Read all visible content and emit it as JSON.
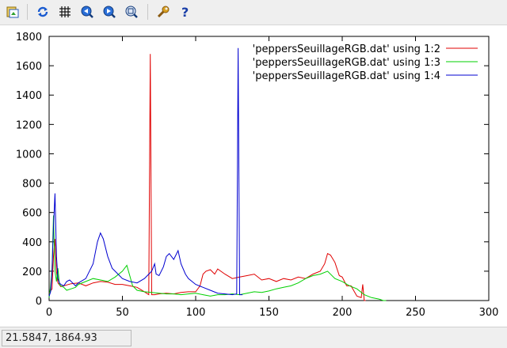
{
  "toolbar": {
    "buttons": [
      {
        "name": "export-icon"
      },
      {
        "name": "replot-icon"
      },
      {
        "name": "grid-icon"
      },
      {
        "name": "zoom-previous-icon"
      },
      {
        "name": "zoom-next-icon"
      },
      {
        "name": "autoscale-icon"
      },
      {
        "name": "options-icon"
      },
      {
        "name": "help-icon"
      }
    ]
  },
  "status": {
    "coordinates": "21.5847,  1864.93"
  },
  "colors": {
    "red": "#e00000",
    "green": "#00d000",
    "blue": "#0000d0"
  },
  "chart_data": {
    "type": "line",
    "xlim": [
      0,
      300
    ],
    "ylim": [
      0,
      1800
    ],
    "xticks": [
      0,
      50,
      100,
      150,
      200,
      250,
      300
    ],
    "yticks": [
      0,
      200,
      400,
      600,
      800,
      1000,
      1200,
      1400,
      1600,
      1800
    ],
    "legend_position": "top-right",
    "series": [
      {
        "name": "'peppersSeuillageRGB.dat' using 1:2",
        "color": "#e00000",
        "x": [
          0,
          2,
          3,
          4,
          5,
          6,
          8,
          10,
          15,
          20,
          25,
          30,
          35,
          40,
          45,
          50,
          55,
          60,
          65,
          68,
          69,
          70,
          71,
          72,
          75,
          80,
          85,
          90,
          95,
          100,
          103,
          105,
          107,
          110,
          113,
          115,
          120,
          125,
          130,
          135,
          140,
          145,
          150,
          155,
          160,
          165,
          170,
          175,
          180,
          185,
          188,
          190,
          192,
          195,
          198,
          200,
          203,
          206,
          210,
          213,
          214,
          215,
          216
        ],
        "y": [
          50,
          80,
          300,
          420,
          200,
          120,
          95,
          100,
          115,
          120,
          100,
          120,
          130,
          125,
          110,
          110,
          100,
          90,
          60,
          40,
          1680,
          40,
          40,
          40,
          45,
          50,
          45,
          55,
          60,
          60,
          100,
          180,
          200,
          210,
          180,
          215,
          180,
          150,
          160,
          170,
          180,
          140,
          150,
          130,
          150,
          140,
          160,
          150,
          180,
          200,
          250,
          320,
          310,
          260,
          170,
          160,
          100,
          100,
          30,
          20,
          110,
          0,
          0
        ]
      },
      {
        "name": "'peppersSeuillageRGB.dat' using 1:3",
        "color": "#00d000",
        "x": [
          0,
          1,
          2,
          3,
          4,
          5,
          6,
          7,
          8,
          10,
          12,
          15,
          18,
          20,
          25,
          30,
          35,
          40,
          45,
          50,
          53,
          55,
          57,
          60,
          65,
          70,
          75,
          80,
          85,
          90,
          95,
          100,
          105,
          110,
          115,
          120,
          125,
          130,
          135,
          140,
          145,
          150,
          155,
          160,
          165,
          170,
          175,
          180,
          185,
          190,
          195,
          200,
          205,
          210,
          215,
          220,
          225,
          228,
          230
        ],
        "y": [
          20,
          100,
          220,
          580,
          200,
          130,
          220,
          110,
          100,
          90,
          70,
          80,
          90,
          110,
          130,
          150,
          140,
          130,
          160,
          200,
          240,
          170,
          100,
          70,
          60,
          55,
          50,
          45,
          45,
          40,
          45,
          50,
          40,
          30,
          40,
          40,
          45,
          40,
          50,
          60,
          55,
          65,
          80,
          90,
          100,
          120,
          150,
          170,
          180,
          200,
          150,
          130,
          100,
          80,
          40,
          20,
          10,
          0,
          0
        ]
      },
      {
        "name": "'peppersSeuillageRGB.dat' using 1:4",
        "color": "#0000d0",
        "x": [
          0,
          1,
          2,
          3,
          4,
          5,
          6,
          7,
          8,
          10,
          12,
          14,
          16,
          18,
          20,
          25,
          30,
          33,
          35,
          37,
          40,
          43,
          45,
          50,
          55,
          60,
          65,
          68,
          70,
          72,
          73,
          75,
          78,
          80,
          82,
          85,
          88,
          90,
          93,
          95,
          100,
          105,
          110,
          115,
          120,
          125,
          128,
          129,
          130,
          131,
          132
        ],
        "y": [
          30,
          60,
          200,
          500,
          730,
          300,
          150,
          120,
          110,
          100,
          130,
          140,
          120,
          100,
          120,
          150,
          250,
          400,
          460,
          420,
          300,
          220,
          200,
          150,
          130,
          120,
          150,
          180,
          200,
          250,
          180,
          170,
          230,
          300,
          320,
          280,
          340,
          250,
          180,
          150,
          110,
          90,
          70,
          50,
          45,
          40,
          45,
          1720,
          40,
          40,
          40
        ]
      }
    ]
  }
}
